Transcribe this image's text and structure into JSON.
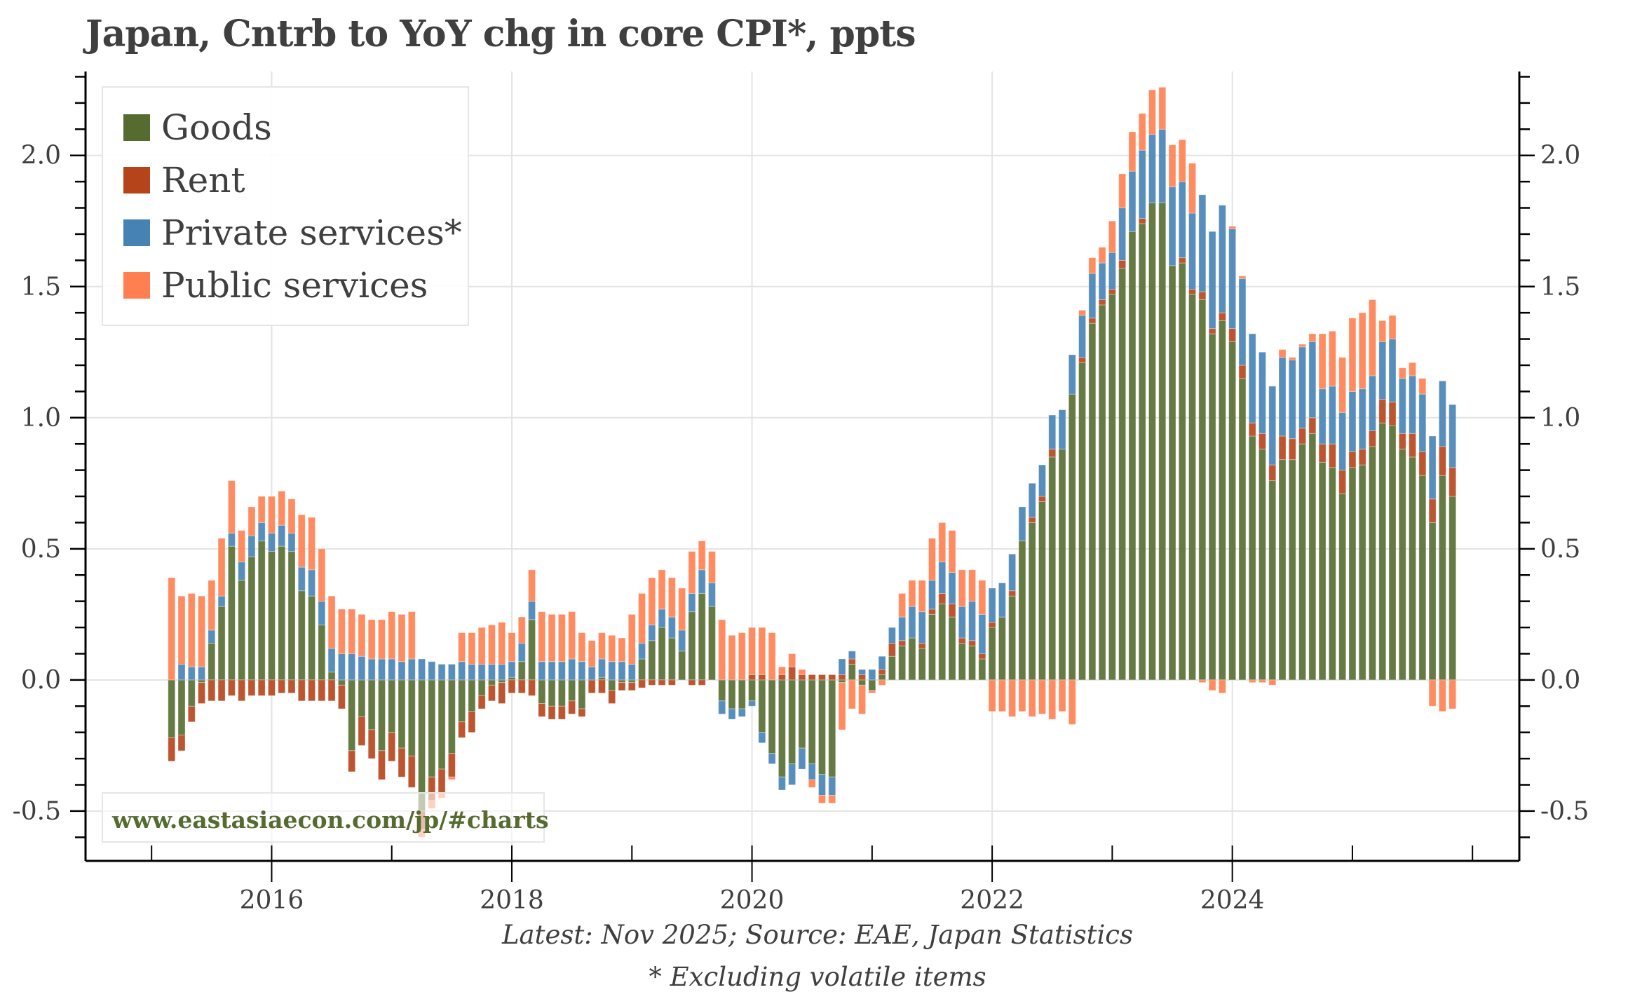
{
  "chart_data": {
    "type": "bar",
    "stacked": true,
    "title": "Japan, Cntrb to YoY chg in core CPI*, ppts",
    "xlabel": "",
    "ylabel": "",
    "ylim": [
      -0.69,
      2.32
    ],
    "xlim": [
      2014.45,
      2026.39
    ],
    "grid": true,
    "y_ticks": [
      "2.0",
      "1.5",
      "1.0",
      "0.5",
      "0.0",
      "-0.5"
    ],
    "y_tick_values": [
      2.0,
      1.5,
      1.0,
      0.5,
      0.0,
      -0.5
    ],
    "x_ticks": [
      "2016",
      "2018",
      "2020",
      "2022",
      "2024"
    ],
    "x_tick_values": [
      2016,
      2018,
      2020,
      2022,
      2024
    ],
    "legend_placement": "top-left",
    "watermark": "www.eastasiaecon.com/jp/#charts",
    "start": "Mar 2015",
    "end": "Nov 2025",
    "frequency": "monthly",
    "series": [
      {
        "name": "Goods",
        "color": "#556b2f",
        "values": [
          -0.22,
          -0.21,
          -0.1,
          -0.01,
          0.14,
          0.28,
          0.51,
          0.38,
          0.47,
          0.53,
          0.49,
          0.51,
          0.49,
          0.34,
          0.32,
          0.21,
          0.03,
          -0.02,
          -0.27,
          -0.14,
          -0.19,
          -0.27,
          -0.2,
          -0.26,
          -0.29,
          -0.5,
          -0.37,
          -0.34,
          -0.28,
          -0.16,
          -0.12,
          -0.06,
          -0.02,
          -0.01,
          0.01,
          0.07,
          0.23,
          -0.09,
          -0.1,
          -0.1,
          -0.08,
          -0.11,
          0.0,
          0.01,
          -0.04,
          -0.01,
          -0.01,
          0.08,
          0.15,
          0.2,
          0.16,
          0.11,
          0.26,
          0.33,
          0.28,
          -0.08,
          -0.11,
          -0.11,
          -0.08,
          -0.2,
          -0.28,
          -0.37,
          -0.32,
          -0.26,
          -0.32,
          -0.36,
          -0.37,
          -0.01,
          0.06,
          -0.02,
          -0.04,
          0.02,
          0.09,
          0.13,
          0.16,
          0.12,
          0.25,
          0.29,
          0.24,
          0.14,
          0.13,
          0.08,
          0.2,
          0.24,
          0.32,
          0.53,
          0.6,
          0.68,
          0.85,
          0.88,
          1.09,
          1.21,
          1.36,
          1.43,
          1.47,
          1.57,
          1.71,
          1.74,
          1.82,
          1.82,
          1.58,
          1.59,
          1.47,
          1.45,
          1.32,
          1.37,
          1.29,
          1.15,
          0.93,
          0.88,
          0.76,
          0.84,
          0.84,
          0.9,
          0.94,
          0.83,
          0.81,
          0.71,
          0.81,
          0.82,
          0.89,
          0.98,
          0.97,
          0.88,
          0.85,
          0.78,
          0.6,
          0.78,
          0.7
        ]
      },
      {
        "name": "Rent",
        "color": "#b5441a",
        "values": [
          -0.09,
          -0.06,
          -0.06,
          -0.08,
          -0.08,
          -0.08,
          -0.06,
          -0.08,
          -0.06,
          -0.06,
          -0.06,
          -0.05,
          -0.05,
          -0.08,
          -0.08,
          -0.08,
          -0.08,
          -0.09,
          -0.08,
          -0.11,
          -0.11,
          -0.11,
          -0.11,
          -0.11,
          -0.12,
          -0.07,
          -0.09,
          -0.09,
          -0.09,
          -0.06,
          -0.08,
          -0.05,
          -0.06,
          -0.08,
          -0.05,
          -0.05,
          -0.06,
          -0.05,
          -0.05,
          -0.05,
          -0.05,
          -0.03,
          -0.05,
          -0.05,
          -0.05,
          -0.03,
          -0.03,
          -0.03,
          -0.02,
          -0.02,
          -0.02,
          0.0,
          -0.02,
          -0.02,
          0.0,
          0.0,
          0.0,
          0.0,
          0.02,
          0.02,
          0.0,
          0.02,
          0.05,
          0.02,
          0.02,
          0.02,
          0.02,
          0.02,
          0.02,
          0.02,
          0.0,
          0.02,
          0.05,
          0.02,
          0.0,
          0.02,
          0.02,
          0.04,
          0.05,
          0.02,
          0.02,
          0.02,
          0.02,
          0.0,
          0.02,
          0.0,
          0.02,
          0.02,
          0.03,
          0.0,
          0.0,
          0.02,
          0.02,
          0.02,
          0.02,
          0.03,
          0.0,
          0.02,
          0.0,
          0.0,
          0.0,
          0.02,
          0.02,
          0.03,
          0.02,
          0.03,
          0.05,
          0.05,
          0.05,
          0.06,
          0.06,
          0.09,
          0.08,
          0.06,
          0.06,
          0.07,
          0.09,
          0.09,
          0.06,
          0.06,
          0.06,
          0.09,
          0.09,
          0.06,
          0.09,
          0.09,
          0.09,
          0.11,
          0.11
        ]
      },
      {
        "name": "Private services*",
        "color": "#4682b4",
        "values": [
          0.0,
          0.06,
          0.05,
          0.05,
          0.05,
          0.04,
          0.05,
          0.07,
          0.08,
          0.07,
          0.07,
          0.08,
          0.07,
          0.09,
          0.1,
          0.09,
          0.09,
          0.1,
          0.1,
          0.09,
          0.08,
          0.08,
          0.08,
          0.07,
          0.08,
          0.08,
          0.07,
          0.06,
          0.06,
          0.07,
          0.06,
          0.06,
          0.06,
          0.06,
          0.06,
          0.07,
          0.07,
          0.07,
          0.07,
          0.07,
          0.08,
          0.07,
          0.05,
          0.07,
          0.07,
          0.07,
          0.06,
          0.06,
          0.06,
          0.07,
          0.08,
          0.08,
          0.07,
          0.09,
          0.09,
          -0.05,
          -0.04,
          -0.03,
          -0.02,
          -0.04,
          -0.04,
          -0.05,
          -0.08,
          -0.08,
          -0.06,
          -0.08,
          -0.07,
          0.06,
          0.03,
          0.02,
          0.04,
          0.05,
          0.06,
          0.09,
          0.12,
          0.12,
          0.11,
          0.12,
          0.12,
          0.12,
          0.15,
          0.15,
          0.13,
          0.13,
          0.14,
          0.13,
          0.13,
          0.12,
          0.13,
          0.15,
          0.15,
          0.16,
          0.17,
          0.14,
          0.14,
          0.2,
          0.23,
          0.26,
          0.26,
          0.28,
          0.3,
          0.29,
          0.29,
          0.37,
          0.37,
          0.41,
          0.38,
          0.33,
          0.34,
          0.31,
          0.3,
          0.3,
          0.3,
          0.31,
          0.29,
          0.21,
          0.22,
          0.22,
          0.23,
          0.23,
          0.21,
          0.22,
          0.24,
          0.21,
          0.22,
          0.22,
          0.24,
          0.25,
          0.24
        ]
      },
      {
        "name": "Public services",
        "color": "#ff7f50",
        "values": [
          0.39,
          0.26,
          0.28,
          0.27,
          0.19,
          0.22,
          0.2,
          0.12,
          0.11,
          0.1,
          0.14,
          0.13,
          0.13,
          0.2,
          0.2,
          0.2,
          0.2,
          0.17,
          0.17,
          0.16,
          0.15,
          0.15,
          0.18,
          0.18,
          0.18,
          -0.03,
          -0.03,
          -0.02,
          -0.01,
          0.11,
          0.12,
          0.14,
          0.15,
          0.16,
          0.11,
          0.1,
          0.12,
          0.19,
          0.18,
          0.18,
          0.18,
          0.11,
          0.1,
          0.1,
          0.1,
          0.09,
          0.19,
          0.19,
          0.18,
          0.15,
          0.15,
          0.16,
          0.16,
          0.11,
          0.12,
          0.23,
          0.17,
          0.18,
          0.18,
          0.18,
          0.18,
          0.03,
          0.05,
          0.02,
          -0.03,
          -0.03,
          -0.03,
          -0.18,
          -0.11,
          -0.11,
          -0.01,
          -0.02,
          0.0,
          0.09,
          0.1,
          0.12,
          0.16,
          0.15,
          0.16,
          0.14,
          0.12,
          0.13,
          -0.12,
          -0.12,
          -0.14,
          -0.12,
          -0.14,
          -0.13,
          -0.15,
          -0.12,
          -0.17,
          0.02,
          0.06,
          0.06,
          0.12,
          0.13,
          0.15,
          0.14,
          0.17,
          0.16,
          0.16,
          0.16,
          0.19,
          -0.01,
          -0.04,
          -0.05,
          0.01,
          0.01,
          -0.01,
          -0.01,
          -0.02,
          0.03,
          0.01,
          0.01,
          0.03,
          0.21,
          0.21,
          0.21,
          0.28,
          0.29,
          0.29,
          0.08,
          0.09,
          0.04,
          0.05,
          0.06,
          -0.1,
          -0.12,
          -0.11
        ]
      }
    ]
  },
  "footer": {
    "source": "Latest: Nov 2025; Source: EAE, Japan Statistics",
    "note": "* Excluding volatile items"
  }
}
